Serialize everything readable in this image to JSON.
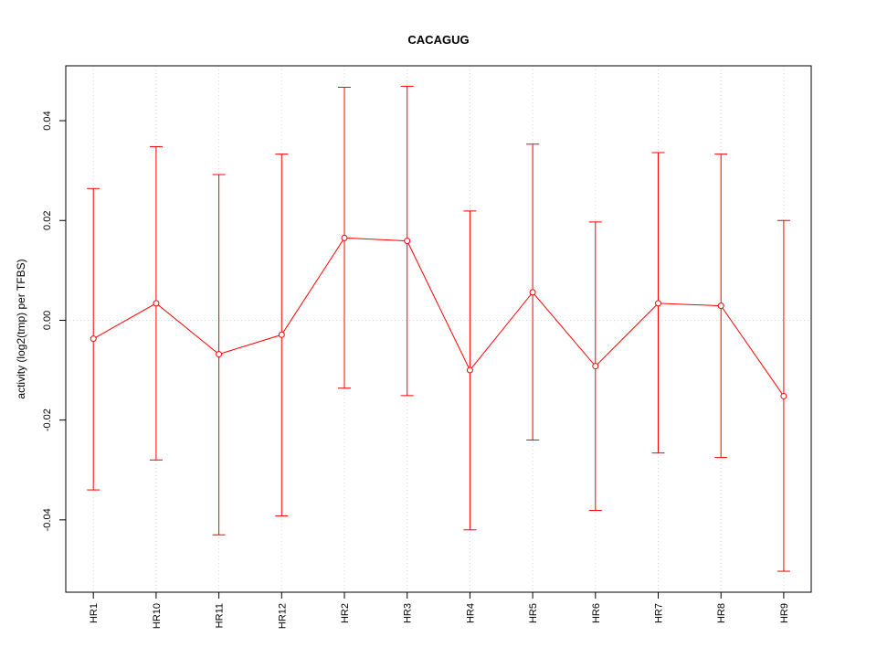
{
  "chart_data": {
    "type": "line",
    "title": "CACAGUG",
    "xlabel": "",
    "ylabel": "activity (log2(tmp) per TFBS)",
    "categories": [
      "HR1",
      "HR10",
      "HR11",
      "HR12",
      "HR2",
      "HR3",
      "HR4",
      "HR5",
      "HR6",
      "HR7",
      "HR8",
      "HR9"
    ],
    "series": [
      {
        "values": [
          -0.0037,
          0.0034,
          -0.0068,
          -0.0029,
          0.0165,
          0.0159,
          -0.01,
          0.0056,
          -0.0092,
          0.0034,
          0.0029,
          -0.0152
        ],
        "lower": [
          -0.034,
          -0.028,
          -0.043,
          -0.0392,
          -0.0136,
          -0.0151,
          -0.042,
          -0.024,
          -0.0381,
          -0.0266,
          -0.0275,
          -0.0503
        ],
        "upper": [
          0.0264,
          0.0348,
          0.0292,
          0.0333,
          0.0467,
          0.0469,
          0.0219,
          0.0353,
          0.0197,
          0.0336,
          0.0333,
          0.02
        ]
      }
    ],
    "yticks": [
      -0.04,
      -0.02,
      0.0,
      0.02,
      0.04
    ],
    "ytick_labels": [
      "-0.04",
      "-0.02",
      "0.00",
      "0.02",
      "0.04"
    ],
    "ylim": [
      -0.0545,
      0.051
    ],
    "grid": true,
    "colors": {
      "series": "#ff0000",
      "grid": "#d3d3d3",
      "axis": "#000000"
    }
  }
}
